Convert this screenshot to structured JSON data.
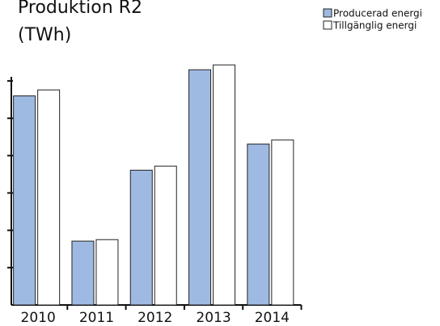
{
  "chart_data": {
    "type": "bar",
    "title": [
      "Produktion R2",
      "(TWh)"
    ],
    "categories": [
      "2010",
      "2011",
      "2012",
      "2013",
      "2014"
    ],
    "series": [
      {
        "name": "Producerad energi",
        "color": "#9fbae2",
        "values": [
          5.6,
          1.71,
          3.61,
          6.3,
          4.31
        ]
      },
      {
        "name": "Tillgänglig energi",
        "color": "#ffffff",
        "values": [
          5.76,
          1.75,
          3.72,
          6.43,
          4.42
        ]
      }
    ],
    "ylim": [
      0,
      6.5
    ],
    "yticks": [
      0,
      1,
      2,
      3,
      4,
      5,
      6
    ],
    "legend": "top-right"
  }
}
